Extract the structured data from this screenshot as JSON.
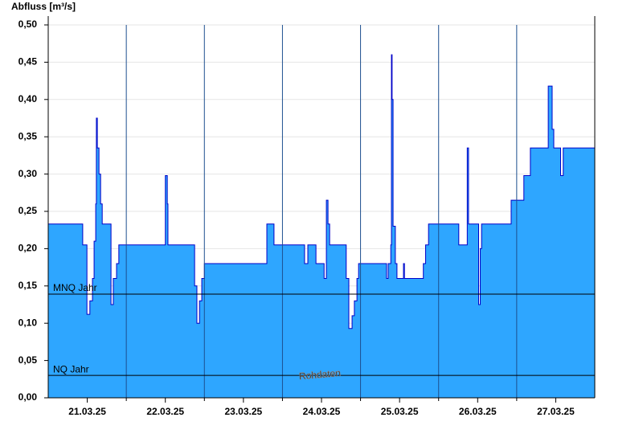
{
  "chart_data": {
    "type": "step-area",
    "y_label": "Abfluss [m³/s]",
    "watermark": "Rohdaten",
    "color": "#2ea6ff",
    "line_color": "#0000c8",
    "xlim": [
      0,
      168
    ],
    "ylim": [
      0,
      0.5
    ],
    "xticks": [
      {
        "value": 12,
        "label": "21.03.25"
      },
      {
        "value": 36,
        "label": "22.03.25"
      },
      {
        "value": 60,
        "label": "23.03.25"
      },
      {
        "value": 84,
        "label": "24.03.25"
      },
      {
        "value": 108,
        "label": "25.03.25"
      },
      {
        "value": 132,
        "label": "26.03.25"
      },
      {
        "value": 156,
        "label": "27.03.25"
      }
    ],
    "xgrid": [
      24,
      48,
      72,
      96,
      120,
      144
    ],
    "yticks": [
      {
        "value": 0,
        "label": "0,00"
      },
      {
        "value": 0.05,
        "label": "0,05"
      },
      {
        "value": 0.1,
        "label": "0,10"
      },
      {
        "value": 0.15,
        "label": "0,15"
      },
      {
        "value": 0.2,
        "label": "0,20"
      },
      {
        "value": 0.25,
        "label": "0,25"
      },
      {
        "value": 0.3,
        "label": "0,30"
      },
      {
        "value": 0.35,
        "label": "0,35"
      },
      {
        "value": 0.4,
        "label": "0,40"
      },
      {
        "value": 0.45,
        "label": "0,45"
      },
      {
        "value": 0.5,
        "label": "0,50"
      }
    ],
    "grid": true,
    "reference_lines": [
      {
        "label": "MNQ Jahr",
        "value": 0.139
      },
      {
        "label": "NQ Jahr",
        "value": 0.03
      }
    ],
    "x": [
      0,
      10.6,
      11.9,
      12.8,
      13.6,
      14.1,
      14.6,
      14.8,
      15.1,
      15.6,
      16.1,
      16.6,
      19.3,
      20,
      21,
      21.7,
      36,
      36.6,
      36.8,
      45,
      45.7,
      46.5,
      47.2,
      48,
      67.2,
      69.4,
      78.8,
      79.8,
      82.3,
      84.8,
      85.5,
      86,
      86.5,
      91.6,
      92.4,
      93.4,
      94.1,
      94.9,
      95.4,
      104,
      104.5,
      105.3,
      105.5,
      105.7,
      106,
      106.7,
      107.2,
      109.2,
      109.5,
      115.3,
      116,
      116.9,
      126.2,
      128.8,
      129.2,
      132.3,
      132.8,
      133.2,
      142.3,
      146.2,
      148.2,
      153.7,
      154.9,
      155.4,
      157.5,
      158.3,
      168
    ],
    "values": [
      0.233,
      0.205,
      0.112,
      0.13,
      0.16,
      0.21,
      0.26,
      0.375,
      0.335,
      0.3,
      0.26,
      0.233,
      0.125,
      0.16,
      0.18,
      0.205,
      0.298,
      0.26,
      0.205,
      0.15,
      0.1,
      0.13,
      0.16,
      0.18,
      0.233,
      0.205,
      0.18,
      0.205,
      0.18,
      0.16,
      0.265,
      0.233,
      0.205,
      0.16,
      0.093,
      0.11,
      0.13,
      0.16,
      0.18,
      0.16,
      0.18,
      0.205,
      0.46,
      0.4,
      0.23,
      0.18,
      0.16,
      0.18,
      0.16,
      0.18,
      0.205,
      0.233,
      0.205,
      0.335,
      0.233,
      0.125,
      0.2,
      0.233,
      0.265,
      0.298,
      0.335,
      0.418,
      0.36,
      0.335,
      0.298,
      0.335,
      0.335
    ]
  }
}
